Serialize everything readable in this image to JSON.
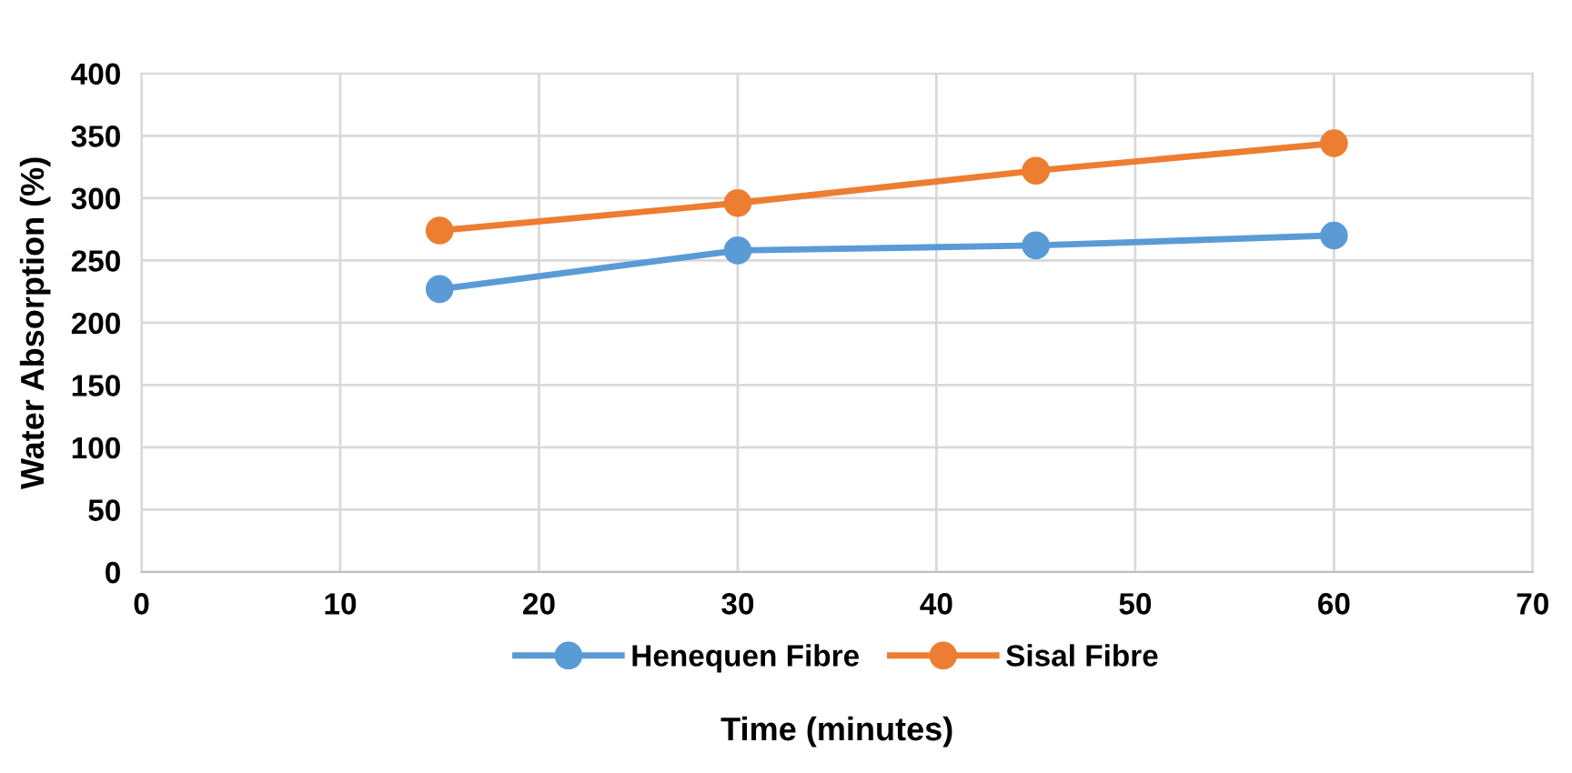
{
  "chart_data": {
    "type": "line",
    "xlabel": "Time (minutes)",
    "ylabel": "Water Absorption (%)",
    "x": [
      15,
      30,
      45,
      60
    ],
    "series": [
      {
        "name": "Henequen Fibre",
        "color": "#5b9bd5",
        "values": [
          227,
          258,
          262,
          270
        ]
      },
      {
        "name": "Sisal Fibre",
        "color": "#ed7d31",
        "values": [
          274,
          296,
          322,
          344
        ]
      }
    ],
    "xlim": [
      0,
      70
    ],
    "xticks": [
      0,
      10,
      20,
      30,
      40,
      50,
      60,
      70
    ],
    "ylim": [
      0,
      400
    ],
    "yticks": [
      0,
      50,
      100,
      150,
      200,
      250,
      300,
      350,
      400
    ],
    "grid": true,
    "legend": "bottom",
    "marker": "circle",
    "line_style": "solid"
  }
}
